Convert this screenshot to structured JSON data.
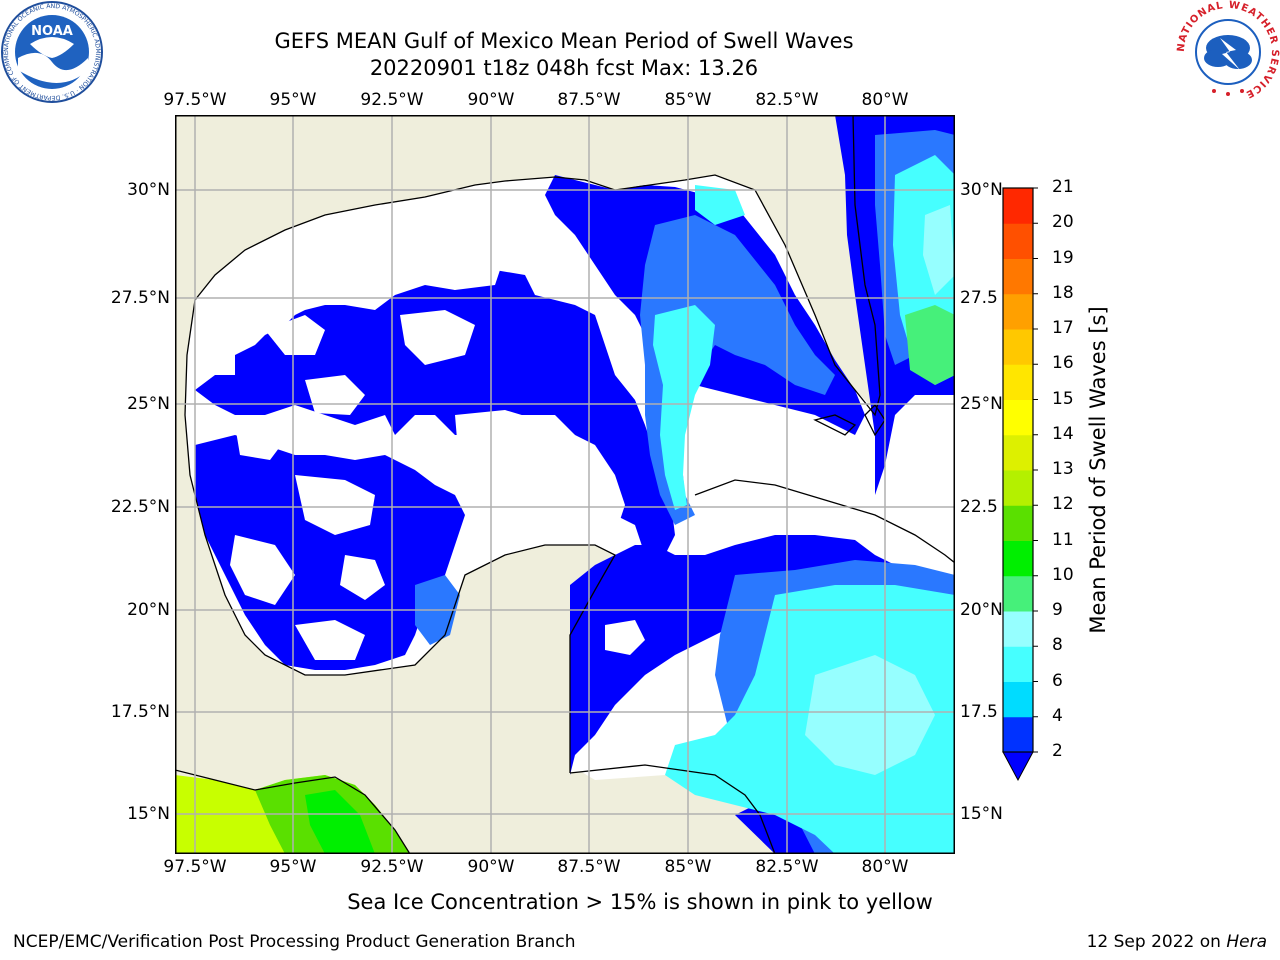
{
  "header": {
    "title_line1": "GEFS MEAN Gulf of Mexico Mean Period of Swell Waves",
    "title_line2": "20220901 t18z 048h fcst   Max: 13.26",
    "noaa_logo_text": "NOAA",
    "noaa_ring_text": "NATIONAL OCEANIC AND ATMOSPHERIC ADMINISTRATION · U.S. DEPARTMENT OF COMMERCE",
    "nws_ring_text": "NATIONAL WEATHER SERVICE"
  },
  "map": {
    "lon_ticks": [
      "97.5°W",
      "95°W",
      "92.5°W",
      "90°W",
      "87.5°W",
      "85°W",
      "82.5°W",
      "80°W"
    ],
    "lat_ticks_left": [
      "30°N",
      "27.5°N",
      "25°N",
      "22.5°N",
      "20°N",
      "17.5°N",
      "15°N"
    ],
    "lat_ticks_right": [
      "30°N",
      "27.5",
      "25°N",
      "22.5",
      "20°N",
      "17.5",
      "15°N"
    ],
    "lon_range": [
      -98.0,
      -78.3
    ],
    "lat_range": [
      14.0,
      31.8
    ],
    "colors": {
      "land": "#efeedc",
      "blue": "#0000ff",
      "mid_blue": "#2a78ff",
      "cyan": "#00ffff",
      "light_cyan": "#55ffff",
      "green": "#2ee86a",
      "yellow_green": "#c8ff00"
    }
  },
  "colorbar": {
    "label": "Mean Period of Swell Waves [s]",
    "tick_labels": [
      "2",
      "4",
      "6",
      "8",
      "9",
      "10",
      "11",
      "12",
      "13",
      "14",
      "15",
      "16",
      "17",
      "18",
      "19",
      "20",
      "21"
    ],
    "bin_colors": [
      "#0032ff",
      "#00dcff",
      "#46ffff",
      "#96ffff",
      "#46f07a",
      "#00ef00",
      "#5ae000",
      "#b4f000",
      "#ddf000",
      "#ffff00",
      "#ffe600",
      "#ffc800",
      "#ffa000",
      "#ff7800",
      "#ff5000",
      "#ff2800"
    ],
    "extend_color": "#0000ff"
  },
  "footer": {
    "note": "Sea Ice Concentration > 15% is shown in pink to yellow",
    "left": "NCEP/EMC/Verification Post Processing Product Generation Branch",
    "date": "12 Sep 2022 on ",
    "machine": "Hera"
  }
}
